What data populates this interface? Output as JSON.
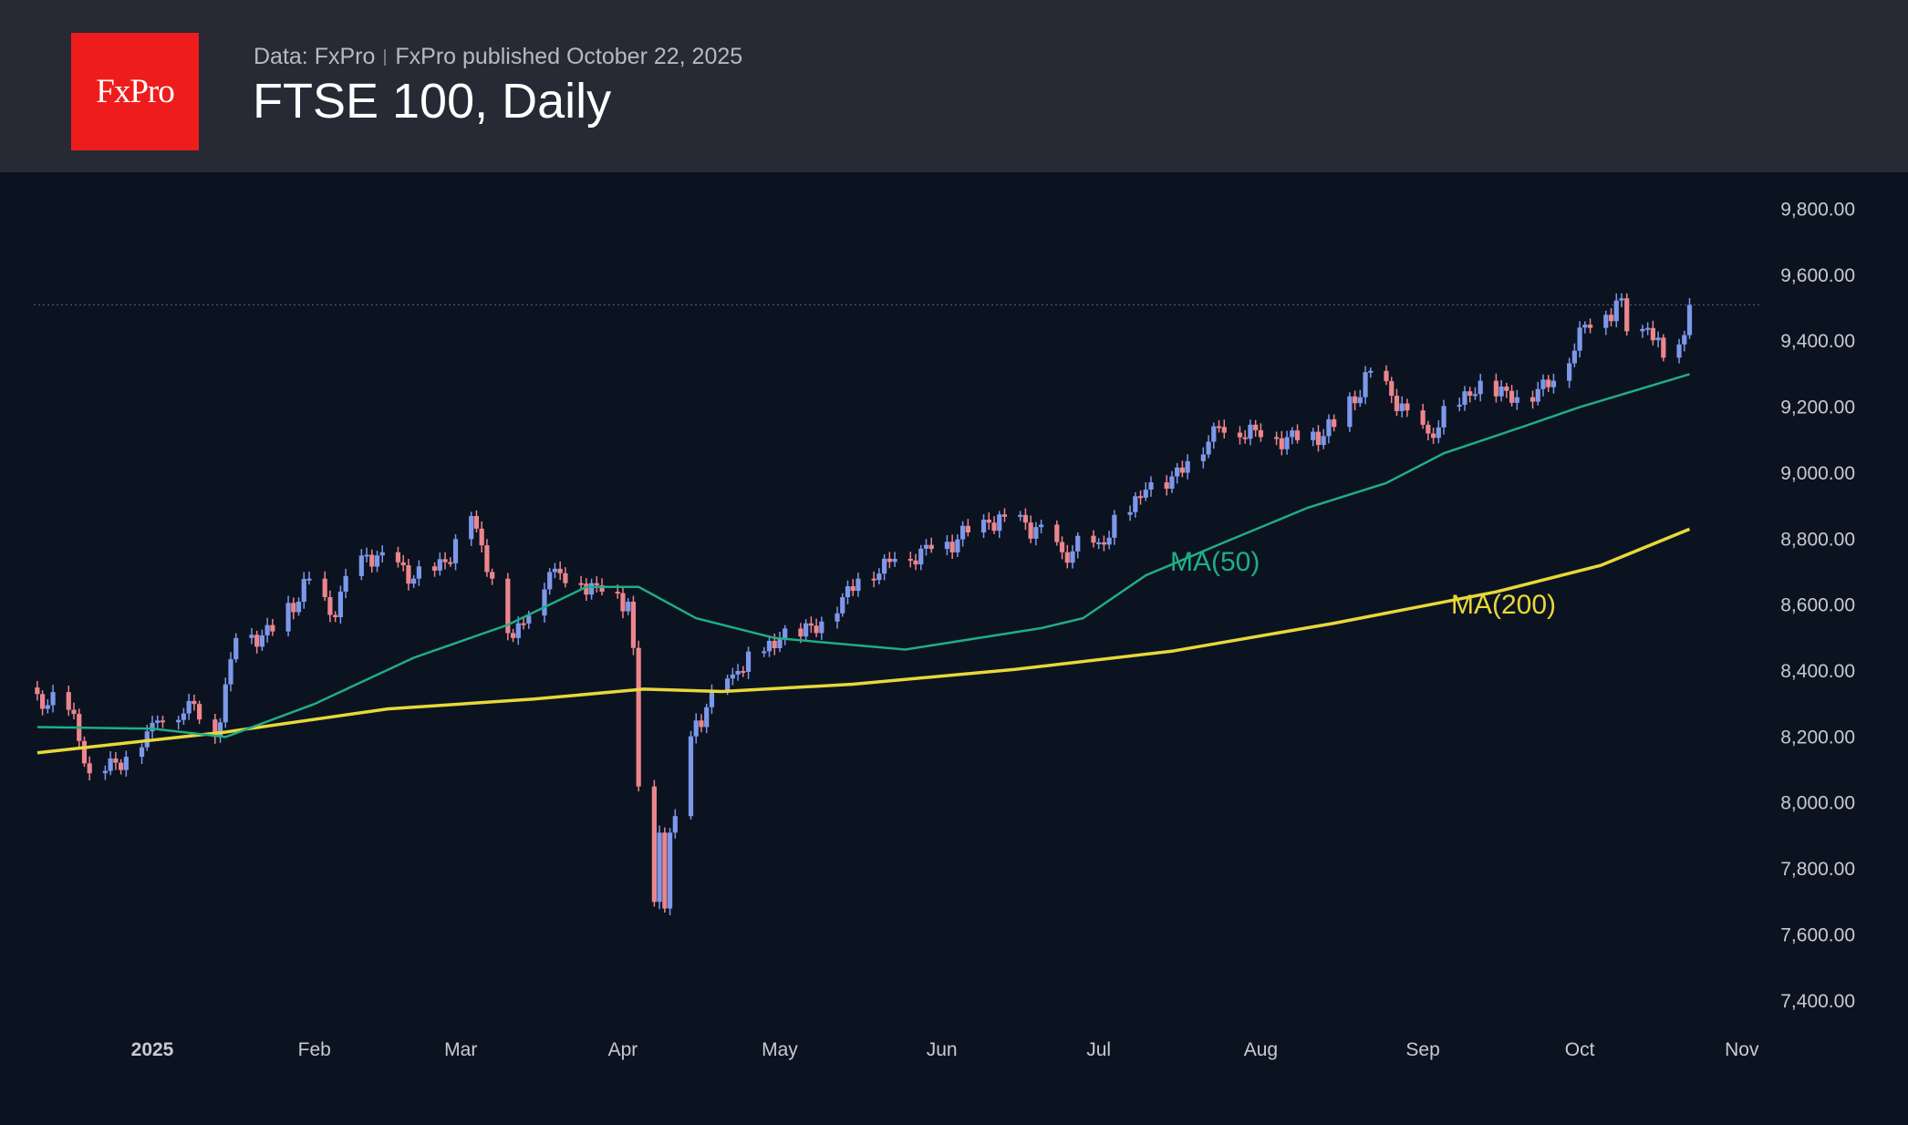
{
  "header": {
    "logo_text": "FxPro",
    "source": "Data: FxPro",
    "published": "FxPro published October 22, 2025",
    "title": "FTSE 100, Daily"
  },
  "chart_data": {
    "type": "candlestick",
    "title": "FTSE 100, Daily",
    "ylim": [
      7400,
      9800
    ],
    "y_ticks": [
      "9,800.00",
      "9,600.00",
      "9,400.00",
      "9,200.00",
      "9,000.00",
      "8,800.00",
      "8,600.00",
      "8,400.00",
      "8,200.00",
      "8,000.00",
      "7,800.00",
      "7,600.00",
      "7,400.00"
    ],
    "y_tick_values": [
      9800,
      9600,
      9400,
      9200,
      9000,
      8800,
      8600,
      8400,
      8200,
      8000,
      7800,
      7600,
      7400
    ],
    "x_ticks": [
      {
        "label": "2025",
        "date": "2025-01-01",
        "bold": true
      },
      {
        "label": "Feb",
        "date": "2025-02-01"
      },
      {
        "label": "Mar",
        "date": "2025-03-01"
      },
      {
        "label": "Apr",
        "date": "2025-04-01"
      },
      {
        "label": "May",
        "date": "2025-05-01"
      },
      {
        "label": "Jun",
        "date": "2025-06-01"
      },
      {
        "label": "Jul",
        "date": "2025-07-01"
      },
      {
        "label": "Aug",
        "date": "2025-08-01"
      },
      {
        "label": "Sep",
        "date": "2025-09-01"
      },
      {
        "label": "Oct",
        "date": "2025-10-01"
      },
      {
        "label": "Nov",
        "date": "2025-11-01"
      }
    ],
    "x_range": [
      "2024-12-10",
      "2025-11-01"
    ],
    "last_price": 9510,
    "close_anchors": [
      [
        "2024-12-10",
        8330
      ],
      [
        "2024-12-17",
        8270
      ],
      [
        "2024-12-20",
        8090
      ],
      [
        "2024-12-27",
        8140
      ],
      [
        "2025-01-02",
        8250
      ],
      [
        "2025-01-09",
        8300
      ],
      [
        "2025-01-13",
        8200
      ],
      [
        "2025-01-17",
        8500
      ],
      [
        "2025-01-24",
        8520
      ],
      [
        "2025-01-31",
        8680
      ],
      [
        "2025-02-04",
        8570
      ],
      [
        "2025-02-10",
        8750
      ],
      [
        "2025-02-14",
        8760
      ],
      [
        "2025-02-20",
        8680
      ],
      [
        "2025-02-26",
        8730
      ],
      [
        "2025-03-03",
        8870
      ],
      [
        "2025-03-07",
        8680
      ],
      [
        "2025-03-11",
        8500
      ],
      [
        "2025-03-18",
        8700
      ],
      [
        "2025-03-27",
        8660
      ],
      [
        "2025-04-02",
        8610
      ],
      [
        "2025-04-03",
        8470
      ],
      [
        "2025-04-04",
        8050
      ],
      [
        "2025-04-07",
        7700
      ],
      [
        "2025-04-08",
        7910
      ],
      [
        "2025-04-09",
        7680
      ],
      [
        "2025-04-10",
        7910
      ],
      [
        "2025-04-11",
        7960
      ],
      [
        "2025-04-15",
        8250
      ],
      [
        "2025-04-23",
        8400
      ],
      [
        "2025-05-01",
        8500
      ],
      [
        "2025-05-09",
        8550
      ],
      [
        "2025-05-16",
        8680
      ],
      [
        "2025-05-23",
        8740
      ],
      [
        "2025-05-30",
        8770
      ],
      [
        "2025-06-10",
        8850
      ],
      [
        "2025-06-17",
        8850
      ],
      [
        "2025-06-24",
        8760
      ],
      [
        "2025-07-01",
        8790
      ],
      [
        "2025-07-10",
        8950
      ],
      [
        "2025-07-15",
        8990
      ],
      [
        "2025-07-24",
        9140
      ],
      [
        "2025-07-31",
        9130
      ],
      [
        "2025-08-08",
        9100
      ],
      [
        "2025-08-15",
        9140
      ],
      [
        "2025-08-22",
        9310
      ],
      [
        "2025-08-29",
        9190
      ],
      [
        "2025-09-02",
        9120
      ],
      [
        "2025-09-12",
        9280
      ],
      [
        "2025-09-19",
        9230
      ],
      [
        "2025-09-26",
        9280
      ],
      [
        "2025-10-02",
        9450
      ],
      [
        "2025-10-06",
        9480
      ],
      [
        "2025-10-09",
        9530
      ],
      [
        "2025-10-10",
        9430
      ],
      [
        "2025-10-14",
        9440
      ],
      [
        "2025-10-17",
        9350
      ],
      [
        "2025-10-20",
        9390
      ],
      [
        "2025-10-22",
        9510
      ]
    ],
    "series": [
      {
        "name": "MA(50)",
        "color": "#1fae84",
        "points": [
          [
            "2024-12-10",
            8230
          ],
          [
            "2025-01-01",
            8225
          ],
          [
            "2025-01-15",
            8200
          ],
          [
            "2025-02-01",
            8300
          ],
          [
            "2025-02-20",
            8440
          ],
          [
            "2025-03-10",
            8540
          ],
          [
            "2025-03-25",
            8655
          ],
          [
            "2025-04-04",
            8655
          ],
          [
            "2025-04-15",
            8560
          ],
          [
            "2025-04-30",
            8500
          ],
          [
            "2025-05-25",
            8465
          ],
          [
            "2025-06-20",
            8530
          ],
          [
            "2025-06-28",
            8560
          ],
          [
            "2025-07-10",
            8690
          ],
          [
            "2025-07-25",
            8790
          ],
          [
            "2025-08-10",
            8895
          ],
          [
            "2025-08-25",
            8970
          ],
          [
            "2025-09-05",
            9060
          ],
          [
            "2025-09-20",
            9140
          ],
          [
            "2025-10-01",
            9200
          ],
          [
            "2025-10-22",
            9300
          ]
        ]
      },
      {
        "name": "MA(200)",
        "color": "#e8d83a",
        "points": [
          [
            "2024-12-10",
            8152
          ],
          [
            "2025-01-15",
            8215
          ],
          [
            "2025-02-15",
            8285
          ],
          [
            "2025-03-15",
            8315
          ],
          [
            "2025-04-05",
            8345
          ],
          [
            "2025-04-20",
            8338
          ],
          [
            "2025-05-15",
            8360
          ],
          [
            "2025-06-15",
            8405
          ],
          [
            "2025-07-15",
            8460
          ],
          [
            "2025-08-15",
            8545
          ],
          [
            "2025-09-15",
            8640
          ],
          [
            "2025-10-05",
            8720
          ],
          [
            "2025-10-22",
            8830
          ]
        ]
      }
    ],
    "labels": {
      "ma50": "MA(50)",
      "ma200": "MA(200)"
    },
    "colors": {
      "up": "#7d98ea",
      "down": "#ec858c",
      "ma50": "#1fae84",
      "ma200": "#e8d83a"
    }
  }
}
